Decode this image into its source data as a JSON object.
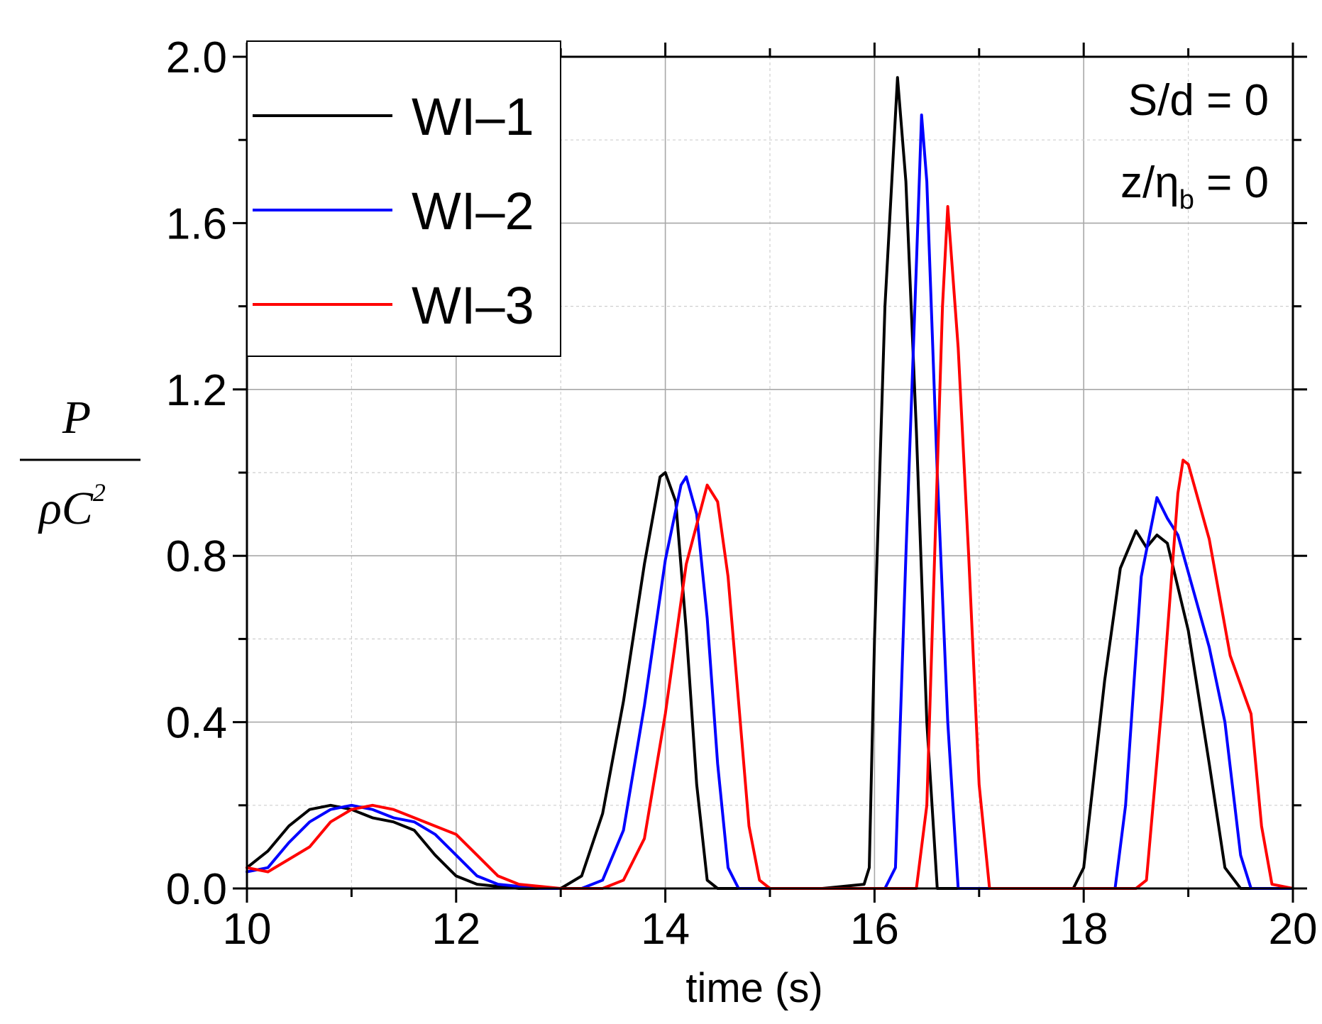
{
  "chart_data": {
    "type": "line",
    "title": "",
    "xlabel": "time (s)",
    "ylabel": {
      "numerator": "P",
      "denominator_rho": "ρ",
      "denominator_C": "C",
      "denominator_exp": "2"
    },
    "xlim": [
      10,
      20
    ],
    "ylim": [
      0,
      2.0
    ],
    "xticks": [
      10,
      12,
      14,
      16,
      18,
      20
    ],
    "xtick_labels": [
      "10",
      "12",
      "14",
      "16",
      "18",
      "20"
    ],
    "yticks": [
      0,
      0.4,
      0.8,
      1.2,
      1.6,
      2.0
    ],
    "ytick_labels": [
      "0.0",
      "0.4",
      "0.8",
      "1.2",
      "1.6",
      "2.0"
    ],
    "grid": true,
    "legend_position": "top-left",
    "annotations": {
      "line1": "S/d = 0",
      "line2_prefix": "z/η",
      "line2_sub": "b",
      "line2_suffix": " = 0"
    },
    "series": [
      {
        "name": "WI–1",
        "color": "#000000",
        "points": [
          [
            10.0,
            0.05
          ],
          [
            10.2,
            0.09
          ],
          [
            10.4,
            0.15
          ],
          [
            10.6,
            0.19
          ],
          [
            10.8,
            0.2
          ],
          [
            11.0,
            0.19
          ],
          [
            11.2,
            0.17
          ],
          [
            11.4,
            0.16
          ],
          [
            11.6,
            0.14
          ],
          [
            11.8,
            0.08
          ],
          [
            12.0,
            0.03
          ],
          [
            12.2,
            0.01
          ],
          [
            12.6,
            0.0
          ],
          [
            13.0,
            0.0
          ],
          [
            13.2,
            0.03
          ],
          [
            13.4,
            0.18
          ],
          [
            13.6,
            0.45
          ],
          [
            13.8,
            0.78
          ],
          [
            13.95,
            0.99
          ],
          [
            14.0,
            1.0
          ],
          [
            14.1,
            0.93
          ],
          [
            14.2,
            0.62
          ],
          [
            14.3,
            0.25
          ],
          [
            14.4,
            0.02
          ],
          [
            14.5,
            0.0
          ],
          [
            15.5,
            0.0
          ],
          [
            15.9,
            0.01
          ],
          [
            15.95,
            0.05
          ],
          [
            16.0,
            0.6
          ],
          [
            16.1,
            1.4
          ],
          [
            16.22,
            1.95
          ],
          [
            16.3,
            1.7
          ],
          [
            16.4,
            1.1
          ],
          [
            16.5,
            0.4
          ],
          [
            16.6,
            0.0
          ],
          [
            17.9,
            0.0
          ],
          [
            18.0,
            0.05
          ],
          [
            18.2,
            0.5
          ],
          [
            18.35,
            0.77
          ],
          [
            18.5,
            0.86
          ],
          [
            18.6,
            0.82
          ],
          [
            18.7,
            0.85
          ],
          [
            18.8,
            0.83
          ],
          [
            19.0,
            0.62
          ],
          [
            19.2,
            0.3
          ],
          [
            19.35,
            0.05
          ],
          [
            19.5,
            0.0
          ],
          [
            20.0,
            0.0
          ]
        ]
      },
      {
        "name": "WI–2",
        "color": "#0000ff",
        "points": [
          [
            10.0,
            0.04
          ],
          [
            10.2,
            0.05
          ],
          [
            10.4,
            0.11
          ],
          [
            10.6,
            0.16
          ],
          [
            10.8,
            0.19
          ],
          [
            11.0,
            0.2
          ],
          [
            11.2,
            0.19
          ],
          [
            11.4,
            0.17
          ],
          [
            11.6,
            0.16
          ],
          [
            11.8,
            0.13
          ],
          [
            12.0,
            0.08
          ],
          [
            12.2,
            0.03
          ],
          [
            12.4,
            0.01
          ],
          [
            12.8,
            0.0
          ],
          [
            13.2,
            0.0
          ],
          [
            13.4,
            0.02
          ],
          [
            13.6,
            0.14
          ],
          [
            13.8,
            0.44
          ],
          [
            14.0,
            0.79
          ],
          [
            14.15,
            0.97
          ],
          [
            14.2,
            0.99
          ],
          [
            14.3,
            0.9
          ],
          [
            14.4,
            0.65
          ],
          [
            14.5,
            0.3
          ],
          [
            14.6,
            0.05
          ],
          [
            14.7,
            0.0
          ],
          [
            16.1,
            0.0
          ],
          [
            16.2,
            0.05
          ],
          [
            16.3,
            0.8
          ],
          [
            16.4,
            1.5
          ],
          [
            16.45,
            1.86
          ],
          [
            16.5,
            1.7
          ],
          [
            16.6,
            1.0
          ],
          [
            16.7,
            0.4
          ],
          [
            16.8,
            0.0
          ],
          [
            18.3,
            0.0
          ],
          [
            18.4,
            0.2
          ],
          [
            18.55,
            0.75
          ],
          [
            18.7,
            0.94
          ],
          [
            18.8,
            0.89
          ],
          [
            18.9,
            0.85
          ],
          [
            19.0,
            0.76
          ],
          [
            19.2,
            0.58
          ],
          [
            19.35,
            0.4
          ],
          [
            19.5,
            0.08
          ],
          [
            19.6,
            0.0
          ],
          [
            20.0,
            0.0
          ]
        ]
      },
      {
        "name": "WI–3",
        "color": "#ff0000",
        "points": [
          [
            10.0,
            0.05
          ],
          [
            10.2,
            0.04
          ],
          [
            10.4,
            0.07
          ],
          [
            10.6,
            0.1
          ],
          [
            10.8,
            0.16
          ],
          [
            11.0,
            0.19
          ],
          [
            11.2,
            0.2
          ],
          [
            11.4,
            0.19
          ],
          [
            11.6,
            0.17
          ],
          [
            11.8,
            0.15
          ],
          [
            12.0,
            0.13
          ],
          [
            12.2,
            0.08
          ],
          [
            12.4,
            0.03
          ],
          [
            12.6,
            0.01
          ],
          [
            13.0,
            0.0
          ],
          [
            13.4,
            0.0
          ],
          [
            13.6,
            0.02
          ],
          [
            13.8,
            0.12
          ],
          [
            14.0,
            0.42
          ],
          [
            14.2,
            0.78
          ],
          [
            14.4,
            0.97
          ],
          [
            14.5,
            0.93
          ],
          [
            14.6,
            0.75
          ],
          [
            14.7,
            0.45
          ],
          [
            14.8,
            0.15
          ],
          [
            14.9,
            0.02
          ],
          [
            15.0,
            0.0
          ],
          [
            16.4,
            0.0
          ],
          [
            16.5,
            0.2
          ],
          [
            16.6,
            1.0
          ],
          [
            16.65,
            1.4
          ],
          [
            16.7,
            1.64
          ],
          [
            16.8,
            1.3
          ],
          [
            16.9,
            0.8
          ],
          [
            17.0,
            0.25
          ],
          [
            17.1,
            0.0
          ],
          [
            18.5,
            0.0
          ],
          [
            18.6,
            0.02
          ],
          [
            18.75,
            0.45
          ],
          [
            18.9,
            0.95
          ],
          [
            18.95,
            1.03
          ],
          [
            19.0,
            1.02
          ],
          [
            19.2,
            0.84
          ],
          [
            19.4,
            0.56
          ],
          [
            19.6,
            0.42
          ],
          [
            19.7,
            0.15
          ],
          [
            19.8,
            0.01
          ],
          [
            20.0,
            0.0
          ]
        ]
      }
    ]
  }
}
